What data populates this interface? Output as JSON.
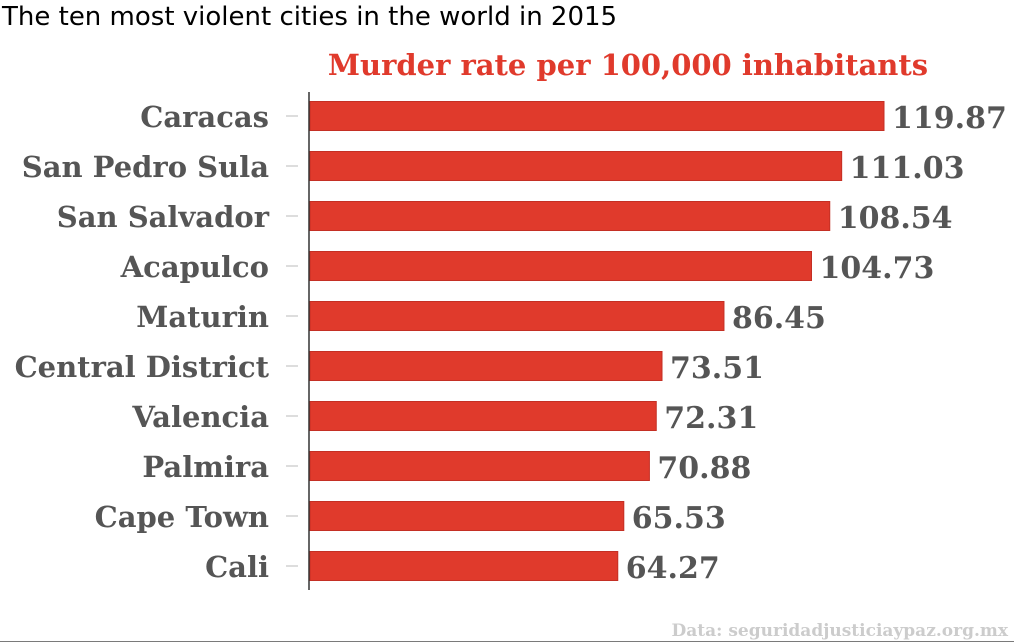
{
  "page": {
    "title": "The ten most violent cities in the world in 2015"
  },
  "colors": {
    "bar": "#e03a2c",
    "bar_edge": "#c42f24",
    "subtitle": "#e03a2c",
    "label": "#555555",
    "value": "#555555",
    "axis": "#333333",
    "tick": "#bbbbbb",
    "source": "#cccccc"
  },
  "chart_data": {
    "type": "bar",
    "orientation": "horizontal",
    "title": "Murder rate per 100,000 inhabitants",
    "categories": [
      "Caracas",
      "San Pedro Sula",
      "San Salvador",
      "Acapulco",
      "Maturin",
      "Central District",
      "Valencia",
      "Palmira",
      "Cape Town",
      "Cali"
    ],
    "values": [
      119.87,
      111.03,
      108.54,
      104.73,
      86.45,
      73.51,
      72.31,
      70.88,
      65.53,
      64.27
    ],
    "value_labels": [
      "119.87",
      "111.03",
      "108.54",
      "104.73",
      "86.45",
      "73.51",
      "72.31",
      "70.88",
      "65.53",
      "64.27"
    ],
    "xlim": [
      0,
      119.87
    ],
    "grid": false,
    "legend": false,
    "source": "Data: seguridadjusticiaypaz.org.mx"
  }
}
